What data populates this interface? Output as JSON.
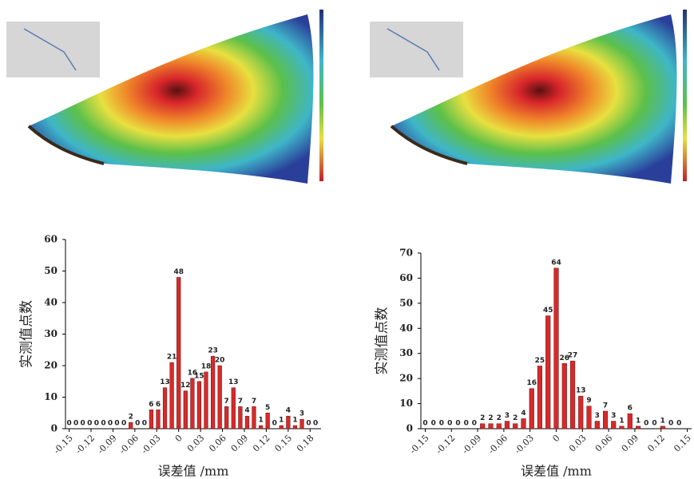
{
  "chart_data": [
    {
      "type": "bar",
      "y_label": "实测值点数",
      "x_label": "误差值 /mm",
      "color": "#d62a2a",
      "x": [
        -0.15,
        -0.1406,
        -0.1313,
        -0.1219,
        -0.1125,
        -0.1031,
        -0.0938,
        -0.0844,
        -0.075,
        -0.0656,
        -0.0563,
        -0.0469,
        -0.0375,
        -0.0281,
        -0.0188,
        -0.0094,
        0,
        0.0094,
        0.0188,
        0.0281,
        0.0375,
        0.0469,
        0.0563,
        0.0656,
        0.075,
        0.0844,
        0.0938,
        0.1031,
        0.1125,
        0.1219,
        0.1313,
        0.1406,
        0.15,
        0.1594,
        0.1688,
        0.1781,
        0.1875
      ],
      "values": [
        0,
        0,
        0,
        0,
        0,
        0,
        0,
        0,
        0,
        2,
        0,
        0,
        6,
        6,
        13,
        21,
        48,
        12,
        16,
        15,
        18,
        23,
        20,
        7,
        13,
        7,
        4,
        7,
        1,
        5,
        0,
        1,
        4,
        1,
        3,
        0,
        0
      ],
      "xlim": [
        -0.155,
        0.195
      ],
      "ylim": [
        0,
        60
      ],
      "xticks": [
        -0.15,
        -0.12,
        -0.09,
        -0.06,
        -0.03,
        0,
        0.03,
        0.06,
        0.09,
        0.12,
        0.15,
        0.18
      ],
      "yticks": [
        0,
        10,
        20,
        30,
        40,
        50,
        60
      ]
    },
    {
      "type": "bar",
      "y_label": "实测值点数",
      "x_label": "误差值 /mm",
      "color": "#d62a2a",
      "x": [
        -0.15,
        -0.1406,
        -0.1313,
        -0.1219,
        -0.1125,
        -0.1031,
        -0.0938,
        -0.0844,
        -0.075,
        -0.0656,
        -0.0563,
        -0.0469,
        -0.0375,
        -0.0281,
        -0.0188,
        -0.0094,
        0,
        0.0094,
        0.0188,
        0.0281,
        0.0375,
        0.0469,
        0.0563,
        0.0656,
        0.075,
        0.0844,
        0.0938,
        0.1031,
        0.1125,
        0.1219,
        0.1313,
        0.1406
      ],
      "values": [
        0,
        0,
        0,
        0,
        0,
        0,
        0,
        2,
        2,
        2,
        3,
        2,
        4,
        16,
        25,
        45,
        64,
        26,
        27,
        13,
        9,
        3,
        7,
        3,
        1,
        6,
        1,
        0,
        0,
        1,
        0,
        0
      ],
      "xlim": [
        -0.155,
        0.155
      ],
      "ylim": [
        0,
        70
      ],
      "xticks": [
        -0.15,
        -0.12,
        -0.09,
        -0.06,
        -0.03,
        0,
        0.03,
        0.06,
        0.09,
        0.12,
        0.15
      ],
      "yticks": [
        0,
        10,
        20,
        30,
        40,
        50,
        60,
        70
      ]
    }
  ]
}
